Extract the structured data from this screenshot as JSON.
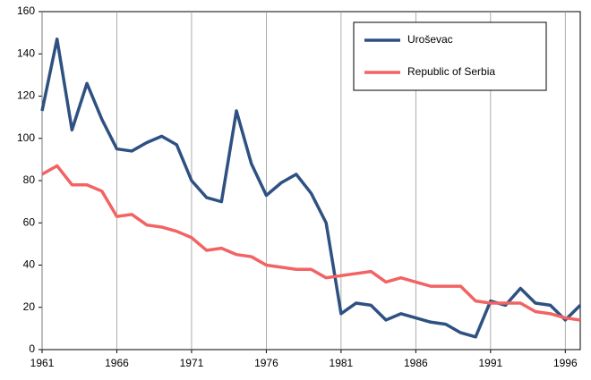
{
  "chart_data": {
    "type": "line",
    "x": [
      1961,
      1962,
      1963,
      1964,
      1965,
      1966,
      1967,
      1968,
      1969,
      1970,
      1971,
      1972,
      1973,
      1974,
      1975,
      1976,
      1977,
      1978,
      1979,
      1980,
      1981,
      1982,
      1983,
      1984,
      1985,
      1986,
      1987,
      1988,
      1989,
      1990,
      1991,
      1992,
      1993,
      1994,
      1995,
      1996,
      1997
    ],
    "series": [
      {
        "name": "Uroševac",
        "color": "#2f5181",
        "values": [
          113,
          147,
          104,
          126,
          109,
          95,
          94,
          98,
          101,
          97,
          80,
          72,
          70,
          113,
          88,
          73,
          79,
          83,
          74,
          60,
          17,
          22,
          21,
          14,
          17,
          15,
          13,
          12,
          8,
          6,
          23,
          21,
          29,
          22,
          21,
          14,
          21
        ]
      },
      {
        "name": "Republic of Serbia",
        "color": "#f26363",
        "values": [
          83,
          87,
          78,
          78,
          75,
          63,
          64,
          59,
          58,
          56,
          53,
          47,
          48,
          45,
          44,
          40,
          39,
          38,
          38,
          34,
          35,
          36,
          37,
          32,
          34,
          32,
          30,
          30,
          30,
          23,
          22,
          22,
          22,
          18,
          17,
          15,
          14
        ]
      }
    ],
    "xlim": [
      1961,
      1997
    ],
    "xticks": [
      1961,
      1966,
      1971,
      1976,
      1981,
      1986,
      1991,
      1996
    ],
    "ylim": [
      0,
      160
    ],
    "yticks": [
      0,
      20,
      40,
      60,
      80,
      100,
      120,
      140,
      160
    ],
    "grid": "x",
    "legend": "upper right"
  }
}
